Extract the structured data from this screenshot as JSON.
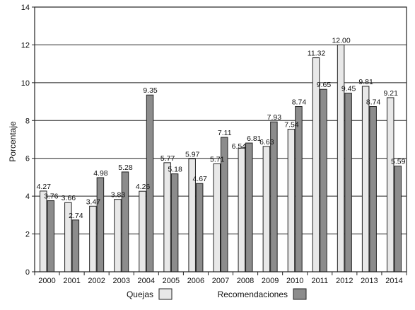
{
  "chart_data": {
    "type": "bar",
    "ylabel": "Porcentaje",
    "xlabel": "",
    "ylim": [
      0,
      14
    ],
    "yticks": [
      0,
      2,
      4,
      6,
      8,
      10,
      12,
      14
    ],
    "grid": true,
    "legend_position": "bottom",
    "categories": [
      "2000",
      "2001",
      "2002",
      "2003",
      "2004",
      "2005",
      "2006",
      "2007",
      "2008",
      "2009",
      "2010",
      "2011",
      "2012",
      "2013",
      "2014"
    ],
    "series": [
      {
        "name": "Quejas",
        "color": "#e8e8e8",
        "values": [
          4.27,
          3.66,
          3.47,
          3.83,
          4.26,
          5.77,
          5.97,
          5.71,
          6.54,
          6.63,
          7.54,
          11.32,
          12.0,
          9.81,
          9.21
        ],
        "labels": [
          "4.27",
          "3.66",
          "3.47",
          "3.83",
          "4.26",
          "5.77",
          "5.97",
          "5.71",
          "6.54",
          "6.63",
          "7.54",
          "11.32",
          "12.00",
          "9.81",
          "9.21"
        ]
      },
      {
        "name": "Recomendaciones",
        "color": "#8c8c8c",
        "values": [
          3.76,
          2.74,
          4.98,
          5.28,
          9.35,
          5.18,
          4.67,
          7.11,
          6.81,
          7.93,
          8.74,
          9.65,
          9.45,
          8.74,
          5.59
        ],
        "labels": [
          "3.76",
          "2.74",
          "4.98",
          "5.28",
          "9.35",
          "5.18",
          "4.67",
          "7.11",
          "6.81",
          "7.93",
          "8.74",
          "9.65",
          "9.45",
          "8.74",
          "5.59"
        ]
      }
    ]
  }
}
